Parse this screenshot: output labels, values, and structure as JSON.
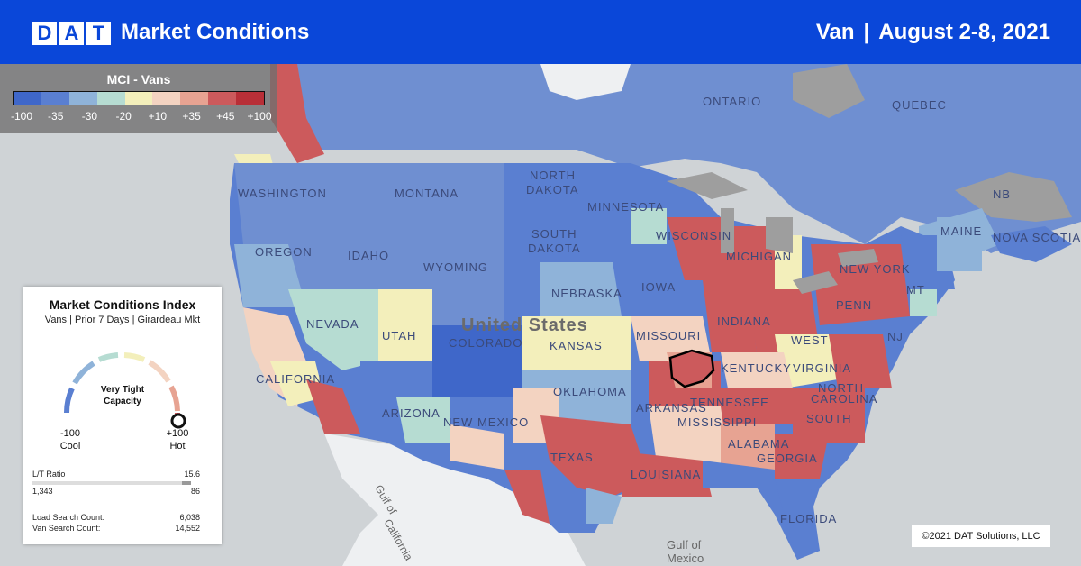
{
  "header": {
    "logo_letters": [
      "D",
      "A",
      "T"
    ],
    "title": "Market Conditions",
    "equipment": "Van",
    "separator": "|",
    "date_range": "August 2-8, 2021"
  },
  "legend": {
    "title": "MCI - Vans",
    "colors": [
      "#3f67c9",
      "#5a7fd1",
      "#8fb3d9",
      "#b6dcd2",
      "#f3efbb",
      "#f3d3c1",
      "#e7a392",
      "#cc5a5c",
      "#b82f37"
    ],
    "ticks": [
      "-100",
      "-35",
      "-30",
      "-20",
      "+10",
      "+35",
      "+45",
      "+100"
    ]
  },
  "map": {
    "labels": {
      "ontario": "ONTARIO",
      "quebec": "QUEBEC",
      "nb": "NB",
      "nova_scotia": "NOVA SCOTIA",
      "washington": "WASHINGTON",
      "montana": "MONTANA",
      "north_dakota_1": "NORTH",
      "north_dakota_2": "DAKOTA",
      "minnesota": "MINNESOTA",
      "maine": "MAINE",
      "oregon": "OREGON",
      "idaho": "IDAHO",
      "south_dakota_1": "SOUTH",
      "south_dakota_2": "DAKOTA",
      "wisconsin": "WISCONSIN",
      "michigan": "MICHIGAN",
      "new_york": "NEW YORK",
      "wyoming": "WYOMING",
      "iowa": "IOWA",
      "nebraska": "NEBRASKA",
      "nevada": "NEVADA",
      "united_states": "United States",
      "indiana": "INDIANA",
      "penn": "PENN",
      "utah": "UTAH",
      "colorado": "COLORADO",
      "kansas": "KANSAS",
      "missouri": "MISSOURI",
      "west": "WEST",
      "virginia": "VIRGINIA",
      "nj": "NJ",
      "california": "CALIFORNIA",
      "kentucky": "KENTUCKY",
      "oklahoma": "OKLAHOMA",
      "tennessee": "TENNESSEE",
      "north": "NORTH",
      "carolina": "CAROLINA",
      "arizona": "ARIZONA",
      "new_mexico": "NEW MEXICO",
      "arkansas": "ARKANSAS",
      "mississippi": "MISSISSIPPI",
      "alabama": "ALABAMA",
      "south": "SOUTH",
      "georgia": "GEORGIA",
      "texas": "TEXAS",
      "louisiana": "LOUISIANA",
      "florida": "FLORIDA",
      "gulf_ca_1": "Gulf of",
      "gulf_ca_2": "California",
      "gulf_mx_1": "Gulf of",
      "gulf_mx_2": "Mexico",
      "mt": "MT"
    },
    "highlighted_market": "Girardeau"
  },
  "card": {
    "title": "Market Conditions Index",
    "subtitle": "Vans | Prior 7 Days | Girardeau Mkt",
    "gauge_label_1": "Very Tight",
    "gauge_label_2": "Capacity",
    "gauge_value": 100,
    "min_value": "-100",
    "min_label": "Cool",
    "max_value": "+100",
    "max_label": "Hot",
    "lt_ratio_label": "L/T Ratio",
    "lt_ratio_value": "15.6",
    "lt_left": "1,343",
    "lt_right": "86",
    "load_search_label": "Load Search Count:",
    "load_search_value": "6,038",
    "van_search_label": "Van Search Count:",
    "van_search_value": "14,552"
  },
  "copyright": "©2021 DAT Solutions, LLC"
}
